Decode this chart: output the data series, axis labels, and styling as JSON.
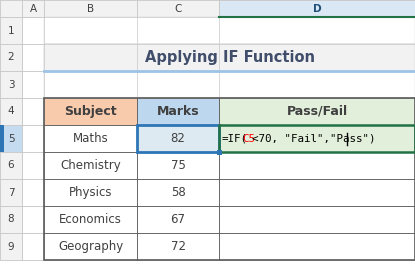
{
  "title": "Applying IF Function",
  "col_headers": [
    "Subject",
    "Marks",
    "Pass/Fail"
  ],
  "rows": [
    [
      "Maths",
      "82"
    ],
    [
      "Chemistry",
      "75"
    ],
    [
      "Physics",
      "58"
    ],
    [
      "Economics",
      "67"
    ],
    [
      "Geography",
      "72"
    ]
  ],
  "formula_parts": [
    [
      "=IF(",
      "#000000"
    ],
    [
      "C5",
      "#FF0000"
    ],
    [
      "<70, \"Fail\",\"Pass\")|",
      "#000000"
    ]
  ],
  "col_labels": [
    "A",
    "B",
    "C",
    "D"
  ],
  "header_bg_subject": "#F8CBAD",
  "header_bg_marks": "#BDD7EE",
  "header_bg_passfail": "#E2EFDA",
  "title_color": "#404E6B",
  "grid_line_color": "#C0C0C0",
  "outer_border_color": "#595959",
  "selected_cell_border": "#2E75B6",
  "formula_text_color": "#000000",
  "row_header_bg": "#F2F2F2",
  "col_header_bg": "#F2F2F2",
  "col_header_selected_bg": "#E0EBF4",
  "cell_bg": "#FFFFFF",
  "selected_row_bg": "#DEEAF1",
  "passfail_header_bg": "#E2EFDA",
  "passfail_cell_border": "#217346",
  "title_underline_color": "#9DC3E6",
  "row_num_selected_bg": "#C5DCF0",
  "col_header_D_border": "#217346"
}
